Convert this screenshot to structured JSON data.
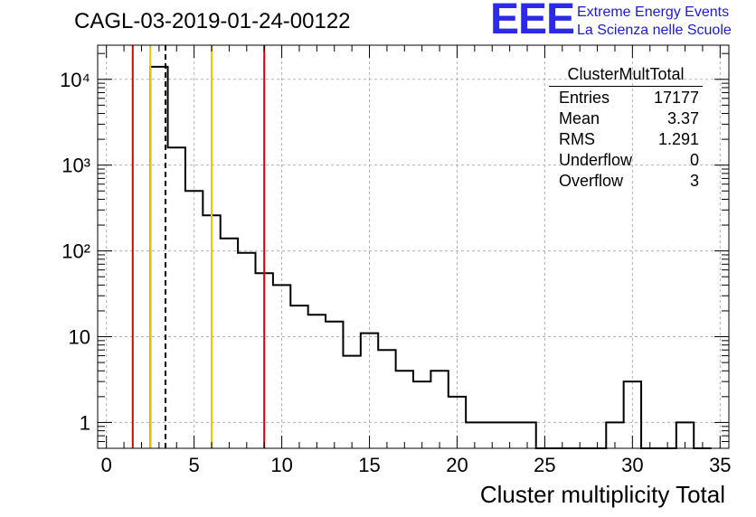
{
  "title": "CAGL-03-2019-01-24-00122",
  "logo": {
    "mark": "EEE",
    "line1": "Extreme Energy Events",
    "line2": "La Scienza nelle Scuole"
  },
  "stats": {
    "title": "ClusterMultTotal",
    "rows": [
      {
        "label": "Entries",
        "value": "17177"
      },
      {
        "label": "Mean",
        "value": "3.37"
      },
      {
        "label": "RMS",
        "value": "1.291"
      },
      {
        "label": "Underflow",
        "value": "0"
      },
      {
        "label": "Overflow",
        "value": "3"
      }
    ]
  },
  "chart_data": {
    "type": "bar",
    "histogram_style": "step",
    "xlabel": "Cluster multiplicity Total",
    "ylabel": "",
    "xlim": [
      -0.5,
      35.5
    ],
    "ylim": [
      0.5,
      25000
    ],
    "yscale": "log",
    "grid": true,
    "bin_width": 1,
    "bin_low_edges": [
      2.5,
      3.5,
      4.5,
      5.5,
      6.5,
      7.5,
      8.5,
      9.5,
      10.5,
      11.5,
      12.5,
      13.5,
      14.5,
      15.5,
      16.5,
      17.5,
      18.5,
      19.5,
      20.5,
      21.5,
      22.5,
      23.5,
      24.5,
      25.5,
      26.5,
      27.5,
      28.5,
      29.5,
      30.5,
      31.5,
      32.5,
      33.5
    ],
    "values": [
      14000,
      1600,
      500,
      260,
      140,
      95,
      55,
      40,
      23,
      18,
      15,
      6,
      11,
      7,
      4,
      3,
      4,
      2,
      1,
      1,
      1,
      1,
      0,
      0,
      0,
      0,
      1,
      3,
      0,
      0,
      1,
      0
    ],
    "xticks": [
      "0",
      "5",
      "10",
      "15",
      "20",
      "25",
      "30",
      "35"
    ],
    "yticks": [
      "1",
      "10",
      "10²",
      "10³",
      "10⁴"
    ],
    "vertical_lines": [
      {
        "x": 1.5,
        "color": "#dd0000",
        "style": "solid"
      },
      {
        "x": 2.5,
        "color": "#f5c000",
        "style": "solid"
      },
      {
        "x": 3.37,
        "color": "#000000",
        "style": "dashed"
      },
      {
        "x": 6.0,
        "color": "#f5c000",
        "style": "solid"
      },
      {
        "x": 9.0,
        "color": "#dd0000",
        "style": "solid"
      }
    ]
  }
}
